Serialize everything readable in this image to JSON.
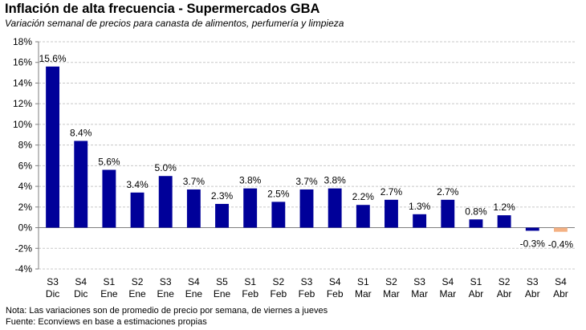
{
  "title": "Inflación de alta frecuencia - Supermercados GBA",
  "subtitle": "Variación semanal de precios para canasta de alimentos, perfumería y limpieza",
  "notes": {
    "nota": "Nota: Las variaciones son de promedio de precio por semana, de viernes a jueves",
    "fuente": "Fuente: Econviews en base a estimaciones propias"
  },
  "colors": {
    "positive": "#000099",
    "negative_latest": "#F4B183",
    "grid": "#C8C8C8"
  },
  "chart_data": {
    "type": "bar",
    "categories": [
      [
        "S3",
        "Dic"
      ],
      [
        "S4",
        "Dic"
      ],
      [
        "S1",
        "Ene"
      ],
      [
        "S2",
        "Ene"
      ],
      [
        "S3",
        "Ene"
      ],
      [
        "S4",
        "Ene"
      ],
      [
        "S5",
        "Ene"
      ],
      [
        "S1",
        "Feb"
      ],
      [
        "S2",
        "Feb"
      ],
      [
        "S3",
        "Feb"
      ],
      [
        "S4",
        "Feb"
      ],
      [
        "S1",
        "Mar"
      ],
      [
        "S2",
        "Mar"
      ],
      [
        "S3",
        "Mar"
      ],
      [
        "S4",
        "Mar"
      ],
      [
        "S1",
        "Abr"
      ],
      [
        "S2",
        "Abr"
      ],
      [
        "S3",
        "Abr"
      ],
      [
        "S4",
        "Abr"
      ]
    ],
    "values": [
      15.6,
      8.4,
      5.6,
      3.4,
      5.0,
      3.7,
      2.3,
      3.8,
      2.5,
      3.7,
      3.8,
      2.2,
      2.7,
      1.3,
      2.7,
      0.8,
      1.2,
      -0.3,
      -0.4
    ],
    "labels": [
      "15.6%",
      "8.4%",
      "5.6%",
      "3.4%",
      "5.0%",
      "3.7%",
      "2.3%",
      "3.8%",
      "2.5%",
      "3.7%",
      "3.8%",
      "2.2%",
      "2.7%",
      "1.3%",
      "2.7%",
      "0.8%",
      "1.2%",
      "-0.3%",
      "-0.4%"
    ],
    "ylim": [
      -4,
      18
    ],
    "yticks": [
      -4,
      -2,
      0,
      2,
      4,
      6,
      8,
      10,
      12,
      14,
      16,
      18
    ],
    "ytick_labels": [
      "-4%",
      "-2%",
      "0%",
      "2%",
      "4%",
      "6%",
      "8%",
      "10%",
      "12%",
      "14%",
      "16%",
      "18%"
    ],
    "grid": true,
    "xlabel": "",
    "ylabel": ""
  }
}
